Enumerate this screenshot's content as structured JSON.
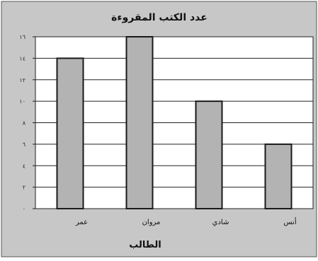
{
  "chart_data": {
    "type": "bar",
    "title": "عدد الكتب المقروءة",
    "xlabel": "الطالب",
    "ylabel": "",
    "categories": [
      "عمر",
      "مروان",
      "شادي",
      "أنس"
    ],
    "values": [
      14,
      16,
      10,
      6
    ],
    "ylim": [
      0,
      16
    ],
    "yticks": [
      0,
      2,
      4,
      6,
      8,
      10,
      12,
      14,
      16
    ],
    "ytick_labels": [
      "٠",
      "٢",
      "٤",
      "٦",
      "٨",
      "١٠",
      "١٢",
      "١٤",
      "١٦"
    ],
    "grid": true,
    "legend": "none",
    "colors": {
      "bar_fill": "#b3b3b3",
      "bar_stroke": "#1a1a1a",
      "outer_background": "#c7c7c7",
      "plot_background": "#ffffff",
      "grid": "#222222"
    }
  }
}
